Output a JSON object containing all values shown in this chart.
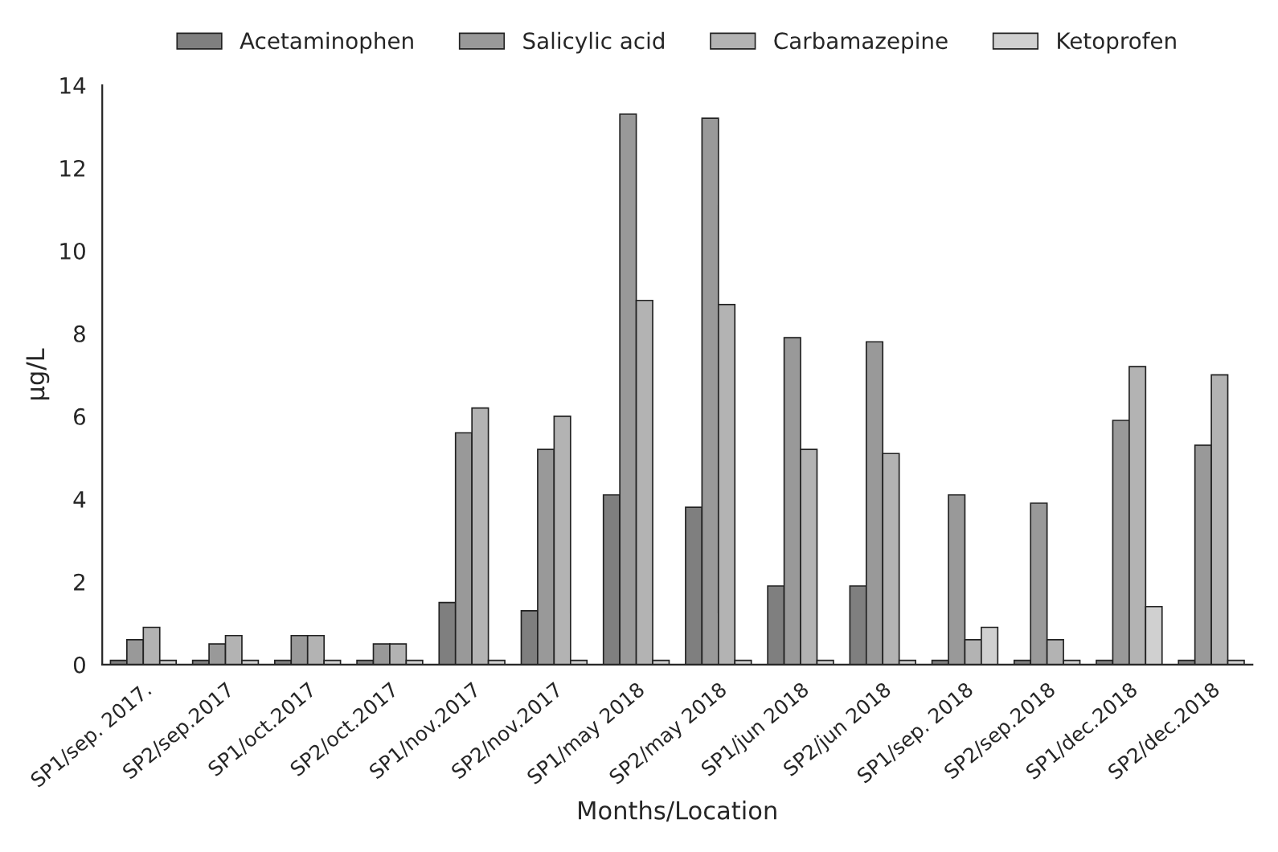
{
  "chart_data": {
    "type": "bar",
    "xlabel": "Months/Location",
    "ylabel": "µg/L",
    "categories": [
      "SP1/sep. 2017.",
      "SP2/sep.2017",
      "SP1/oct.2017",
      "SP2/oct.2017",
      "SP1/nov.2017",
      "SP2/nov.2017",
      "SP1/may 2018",
      "SP2/may 2018",
      "SP1/jun 2018",
      "SP2/jun 2018",
      "SP1/sep. 2018",
      "SP2/sep.2018",
      "SP1/dec.2018",
      "SP2/dec.2018"
    ],
    "series": [
      {
        "name": "Acetaminophen",
        "color": "#7f7f7f",
        "values": [
          0.1,
          0.1,
          0.1,
          0.1,
          1.5,
          1.3,
          4.1,
          3.8,
          1.9,
          1.9,
          0.1,
          0.1,
          0.1,
          0.1
        ]
      },
      {
        "name": "Salicylic acid",
        "color": "#999999",
        "values": [
          0.6,
          0.5,
          0.7,
          0.5,
          5.6,
          5.2,
          13.3,
          13.2,
          7.9,
          7.8,
          4.1,
          3.9,
          5.9,
          5.3
        ]
      },
      {
        "name": "Carbamazepine",
        "color": "#b3b3b3",
        "values": [
          0.9,
          0.7,
          0.7,
          0.5,
          6.2,
          6.0,
          8.8,
          8.7,
          5.2,
          5.1,
          0.6,
          0.6,
          7.2,
          7.0
        ]
      },
      {
        "name": "Ketoprofen",
        "color": "#d0d0d0",
        "values": [
          0.1,
          0.1,
          0.1,
          0.1,
          0.1,
          0.1,
          0.1,
          0.1,
          0.1,
          0.1,
          0.9,
          0.1,
          1.4,
          0.1
        ]
      }
    ],
    "ylim": [
      0,
      14
    ],
    "yticks": [
      0,
      2,
      4,
      6,
      8,
      10,
      12,
      14
    ],
    "grid": false,
    "legend": "top"
  }
}
